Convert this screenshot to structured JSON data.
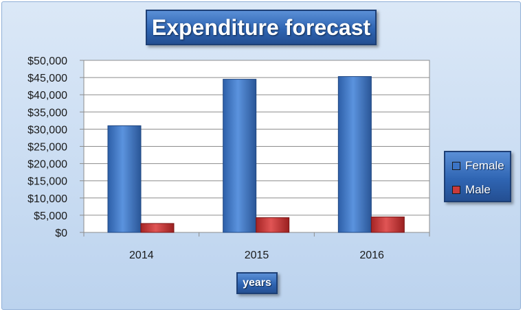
{
  "chart_data": {
    "type": "bar",
    "title": "Expenditure forecast",
    "xlabel": "years",
    "ylabel": "",
    "categories": [
      "2014",
      "2015",
      "2016"
    ],
    "series": [
      {
        "name": "Female",
        "values": [
          31000,
          44500,
          45300
        ],
        "color": "#3b74c6"
      },
      {
        "name": "Male",
        "values": [
          2600,
          4300,
          4500
        ],
        "color": "#c93a3a"
      }
    ],
    "ylim": [
      0,
      50000
    ],
    "yticks": [
      0,
      5000,
      10000,
      15000,
      20000,
      25000,
      30000,
      35000,
      40000,
      45000,
      50000
    ],
    "ytick_labels": [
      "$0",
      "$5,000",
      "$10,000",
      "$15,000",
      "$20,000",
      "$25,000",
      "$30,000",
      "$35,000",
      "$40,000",
      "$45,000",
      "$50,000"
    ],
    "grid": true,
    "legend_position": "right"
  }
}
